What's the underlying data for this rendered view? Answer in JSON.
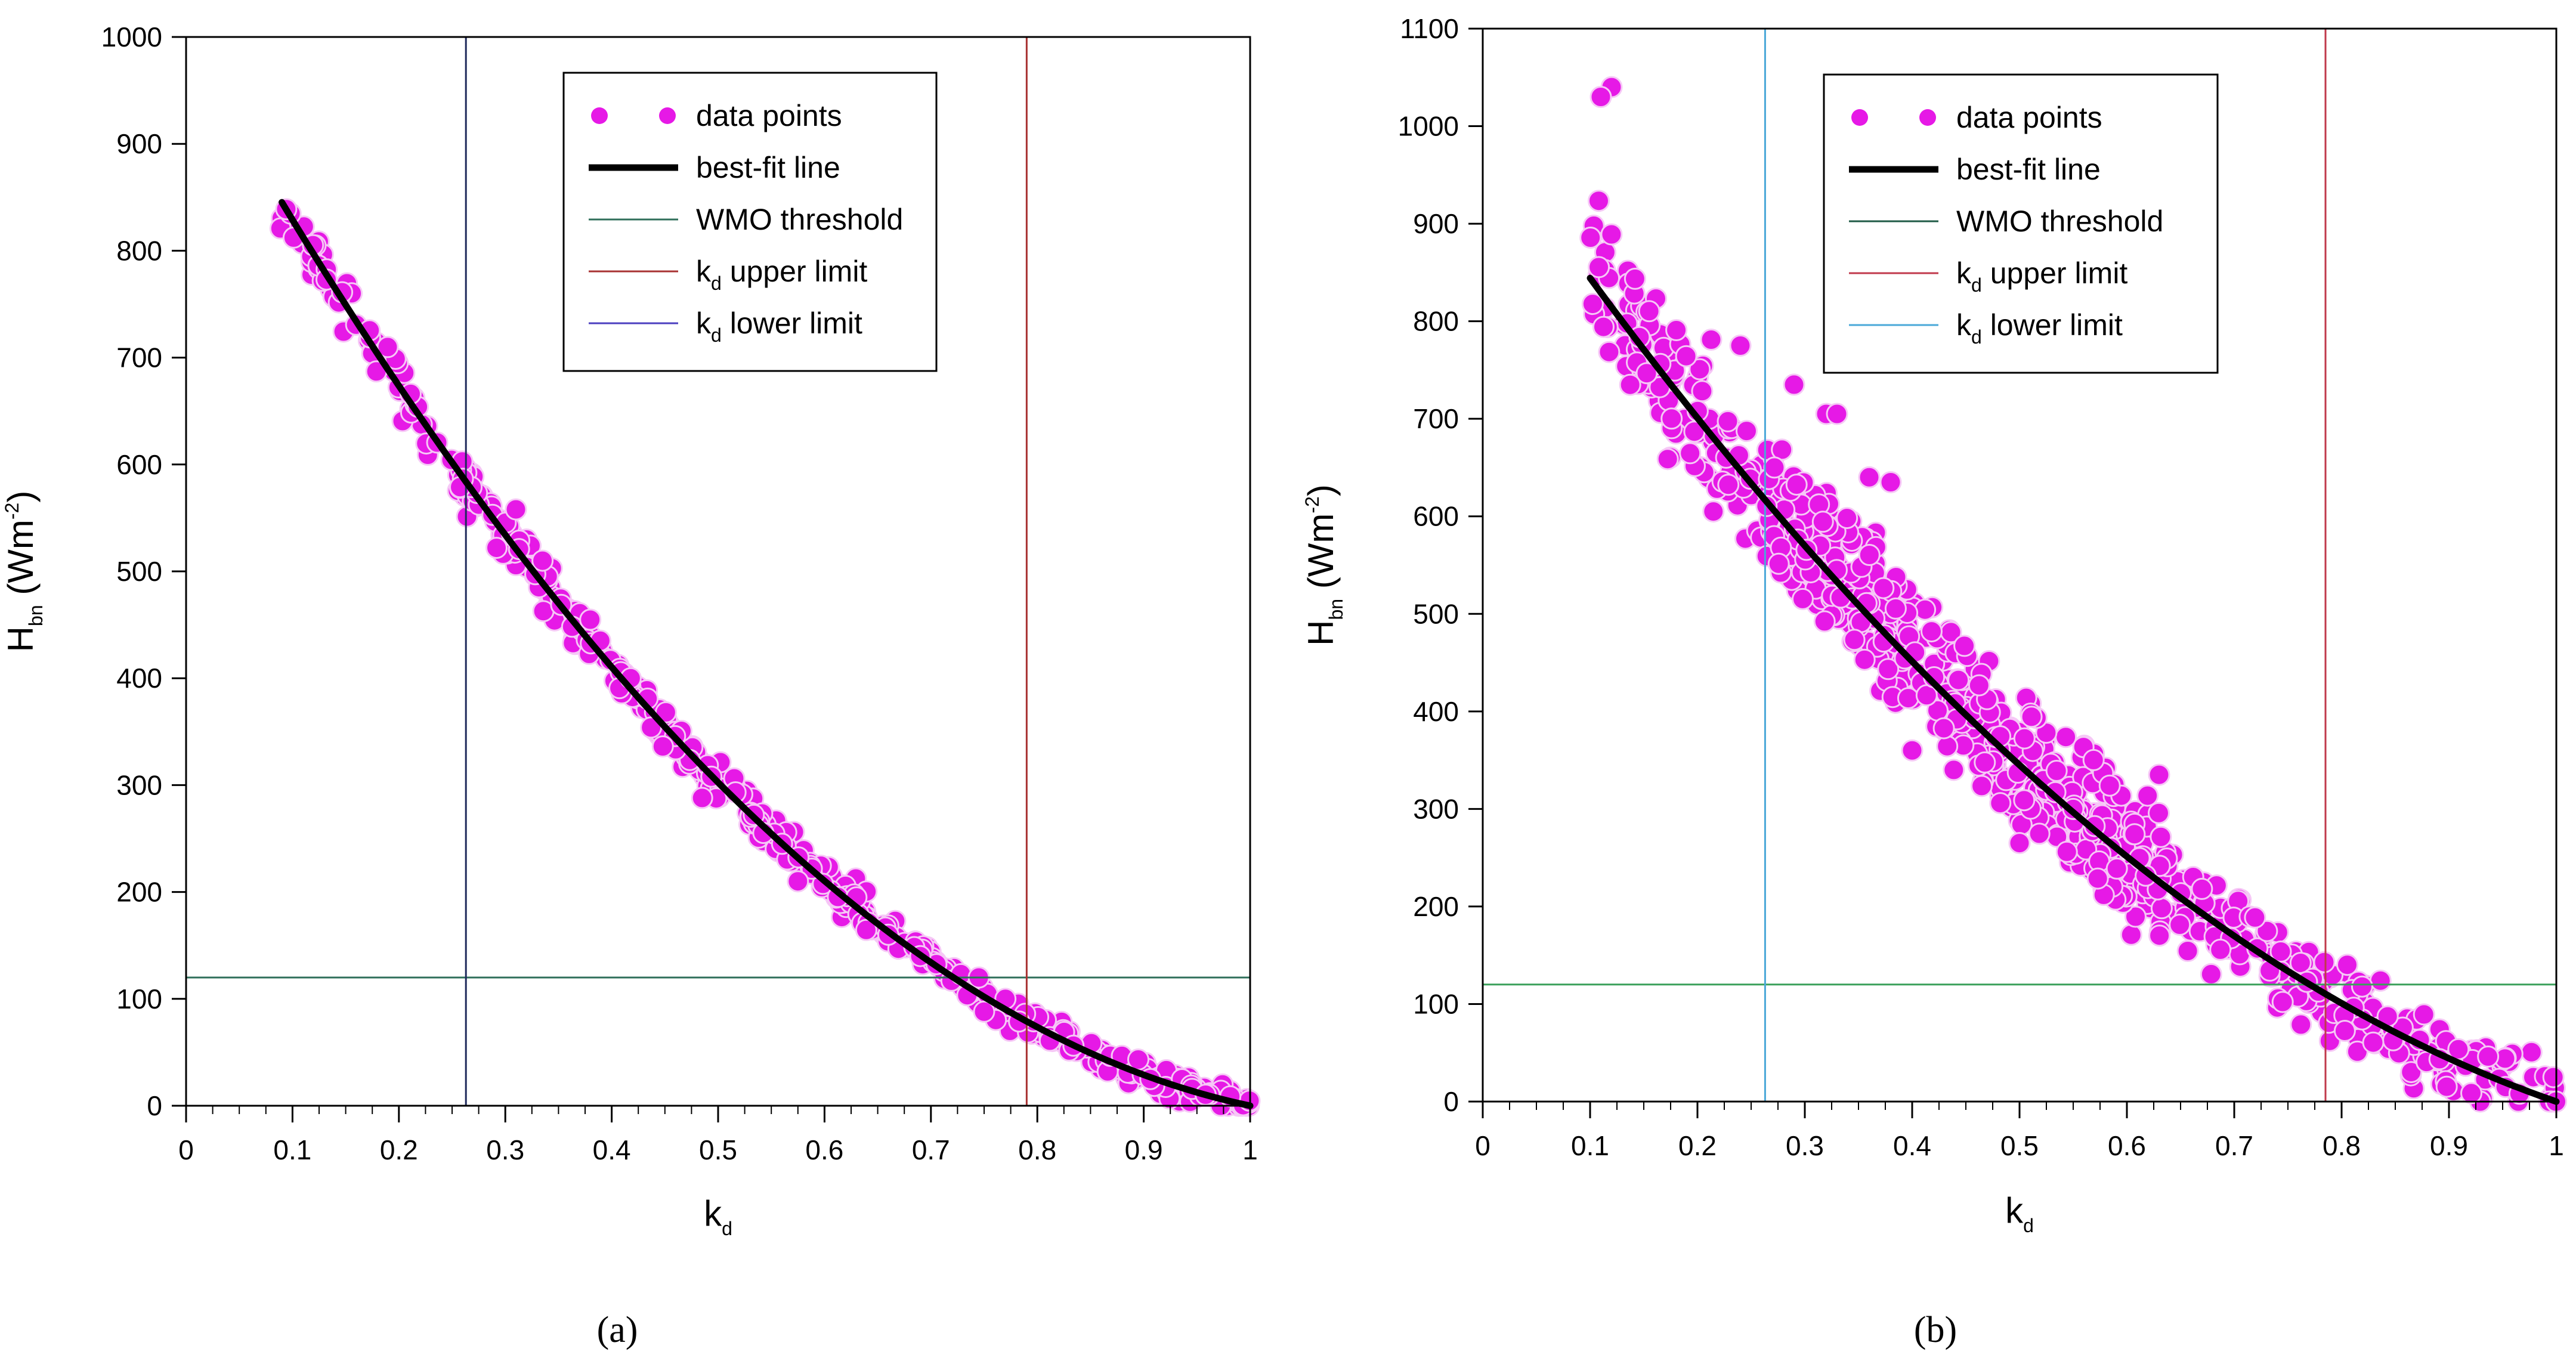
{
  "chart_data": [
    {
      "id": "a",
      "type": "scatter",
      "caption": "(a)",
      "xlabel": "k",
      "xlabel_sub": "d",
      "ylabel": "H",
      "ylabel_sub": "bn",
      "ylabel_units": "(Wm",
      "ylabel_units_sup": "-2",
      "ylabel_units_close": ")",
      "xlim": [
        0,
        1
      ],
      "ylim": [
        0,
        1000
      ],
      "xticks": [
        0,
        0.1,
        0.2,
        0.3,
        0.4,
        0.5,
        0.6,
        0.7,
        0.8,
        0.9,
        1
      ],
      "xtick_labels": [
        "0",
        "0.1",
        "0.2",
        "0.3",
        "0.4",
        "0.5",
        "0.6",
        "0.7",
        "0.8",
        "0.9",
        "1"
      ],
      "yticks": [
        0,
        100,
        200,
        300,
        400,
        500,
        600,
        700,
        800,
        900,
        1000
      ],
      "ytick_labels": [
        "0",
        "100",
        "200",
        "300",
        "400",
        "500",
        "600",
        "700",
        "800",
        "900",
        "1000"
      ],
      "fit_curve": {
        "name": "best-fit line",
        "x_start": 0.09,
        "coefficients": [
          1000,
          -1790,
          790
        ],
        "color": "#000000"
      },
      "scatter_band": {
        "x_start": 0.085,
        "x_end": 1.0,
        "count": 520,
        "spread": 14,
        "color": "#e619e6",
        "seed": 11
      },
      "outliers": [
        {
          "x": 0.485,
          "y": 288
        },
        {
          "x": 0.575,
          "y": 210
        },
        {
          "x": 0.31,
          "y": 558
        },
        {
          "x": 0.335,
          "y": 510
        },
        {
          "x": 0.75,
          "y": 88
        },
        {
          "x": 0.69,
          "y": 140
        },
        {
          "x": 0.66,
          "y": 160
        },
        {
          "x": 0.63,
          "y": 195
        },
        {
          "x": 0.745,
          "y": 120
        },
        {
          "x": 0.77,
          "y": 100
        }
      ],
      "wmo_threshold": {
        "y": 120,
        "color": "#2f6f5a"
      },
      "kd_upper_limit": {
        "x": 0.79,
        "color": "#a83232"
      },
      "kd_lower_limit": {
        "x": 0.263,
        "color": "#1f2a5c"
      },
      "legend": {
        "position": "top-right",
        "entries": [
          {
            "label": "data points",
            "sub": "",
            "suffix": "",
            "kind": "points",
            "color": "#e619e6"
          },
          {
            "label": "best-fit line",
            "sub": "",
            "suffix": "",
            "kind": "thick",
            "color": "#000000"
          },
          {
            "label": "WMO threshold",
            "sub": "",
            "suffix": "",
            "kind": "line",
            "color": "#2f6f5a"
          },
          {
            "label": "k",
            "sub": "d",
            "suffix": " upper limit",
            "kind": "line",
            "color": "#a83232"
          },
          {
            "label": "k",
            "sub": "d",
            "suffix": " lower limit",
            "kind": "line",
            "color": "#4b3fbf"
          }
        ]
      }
    },
    {
      "id": "b",
      "type": "scatter",
      "caption": "(b)",
      "xlabel": "k",
      "xlabel_sub": "d",
      "ylabel": "H",
      "ylabel_sub": "bn",
      "ylabel_units": "(Wm",
      "ylabel_units_sup": "-2",
      "ylabel_units_close": ")",
      "xlim": [
        0,
        1
      ],
      "ylim": [
        0,
        1100
      ],
      "xticks": [
        0,
        0.1,
        0.2,
        0.3,
        0.4,
        0.5,
        0.6,
        0.7,
        0.8,
        0.9,
        1
      ],
      "xtick_labels": [
        "0",
        "0.1",
        "0.2",
        "0.3",
        "0.4",
        "0.5",
        "0.6",
        "0.7",
        "0.8",
        "0.9",
        "1"
      ],
      "yticks": [
        0,
        100,
        200,
        300,
        400,
        500,
        600,
        700,
        800,
        900,
        1000,
        1100
      ],
      "ytick_labels": [
        "0",
        "100",
        "200",
        "300",
        "400",
        "500",
        "600",
        "700",
        "800",
        "900",
        "1000",
        "1100"
      ],
      "fit_curve": {
        "name": "best-fit line",
        "x_start": 0.1,
        "coefficients": [
          1000,
          -1620,
          620
        ],
        "color": "#000000"
      },
      "scatter_band": {
        "x_start": 0.1,
        "x_end": 1.0,
        "count": 560,
        "spread": 40,
        "color": "#e619e6",
        "seed": 23
      },
      "scatter_cloud": {
        "x_start": 0.26,
        "x_end": 0.64,
        "count": 260,
        "offset_min": -60,
        "offset_max": 80,
        "color": "#e619e6",
        "seed": 37
      },
      "outliers": [
        {
          "x": 0.12,
          "y": 1040
        },
        {
          "x": 0.11,
          "y": 1030
        },
        {
          "x": 0.24,
          "y": 775
        },
        {
          "x": 0.29,
          "y": 735
        },
        {
          "x": 0.32,
          "y": 705
        },
        {
          "x": 0.33,
          "y": 705
        },
        {
          "x": 0.36,
          "y": 640
        },
        {
          "x": 0.38,
          "y": 635
        },
        {
          "x": 0.63,
          "y": 335
        },
        {
          "x": 0.55,
          "y": 300
        },
        {
          "x": 0.4,
          "y": 360
        },
        {
          "x": 0.5,
          "y": 265
        }
      ],
      "wmo_threshold": {
        "y": 120,
        "color": "#3aa05a"
      },
      "kd_upper_limit": {
        "x": 0.785,
        "color": "#c0394b"
      },
      "kd_lower_limit": {
        "x": 0.263,
        "color": "#4aa8d8"
      },
      "legend": {
        "position": "top-right",
        "entries": [
          {
            "label": "data points",
            "sub": "",
            "suffix": "",
            "kind": "points",
            "color": "#e619e6"
          },
          {
            "label": "best-fit line",
            "sub": "",
            "suffix": "",
            "kind": "thick",
            "color": "#000000"
          },
          {
            "label": "WMO threshold",
            "sub": "",
            "suffix": "",
            "kind": "line",
            "color": "#1f5a46"
          },
          {
            "label": "k",
            "sub": "d",
            "suffix": " upper limit",
            "kind": "line",
            "color": "#c0394b"
          },
          {
            "label": "k",
            "sub": "d",
            "suffix": " lower limit",
            "kind": "line",
            "color": "#4aa8d8"
          }
        ]
      }
    }
  ]
}
